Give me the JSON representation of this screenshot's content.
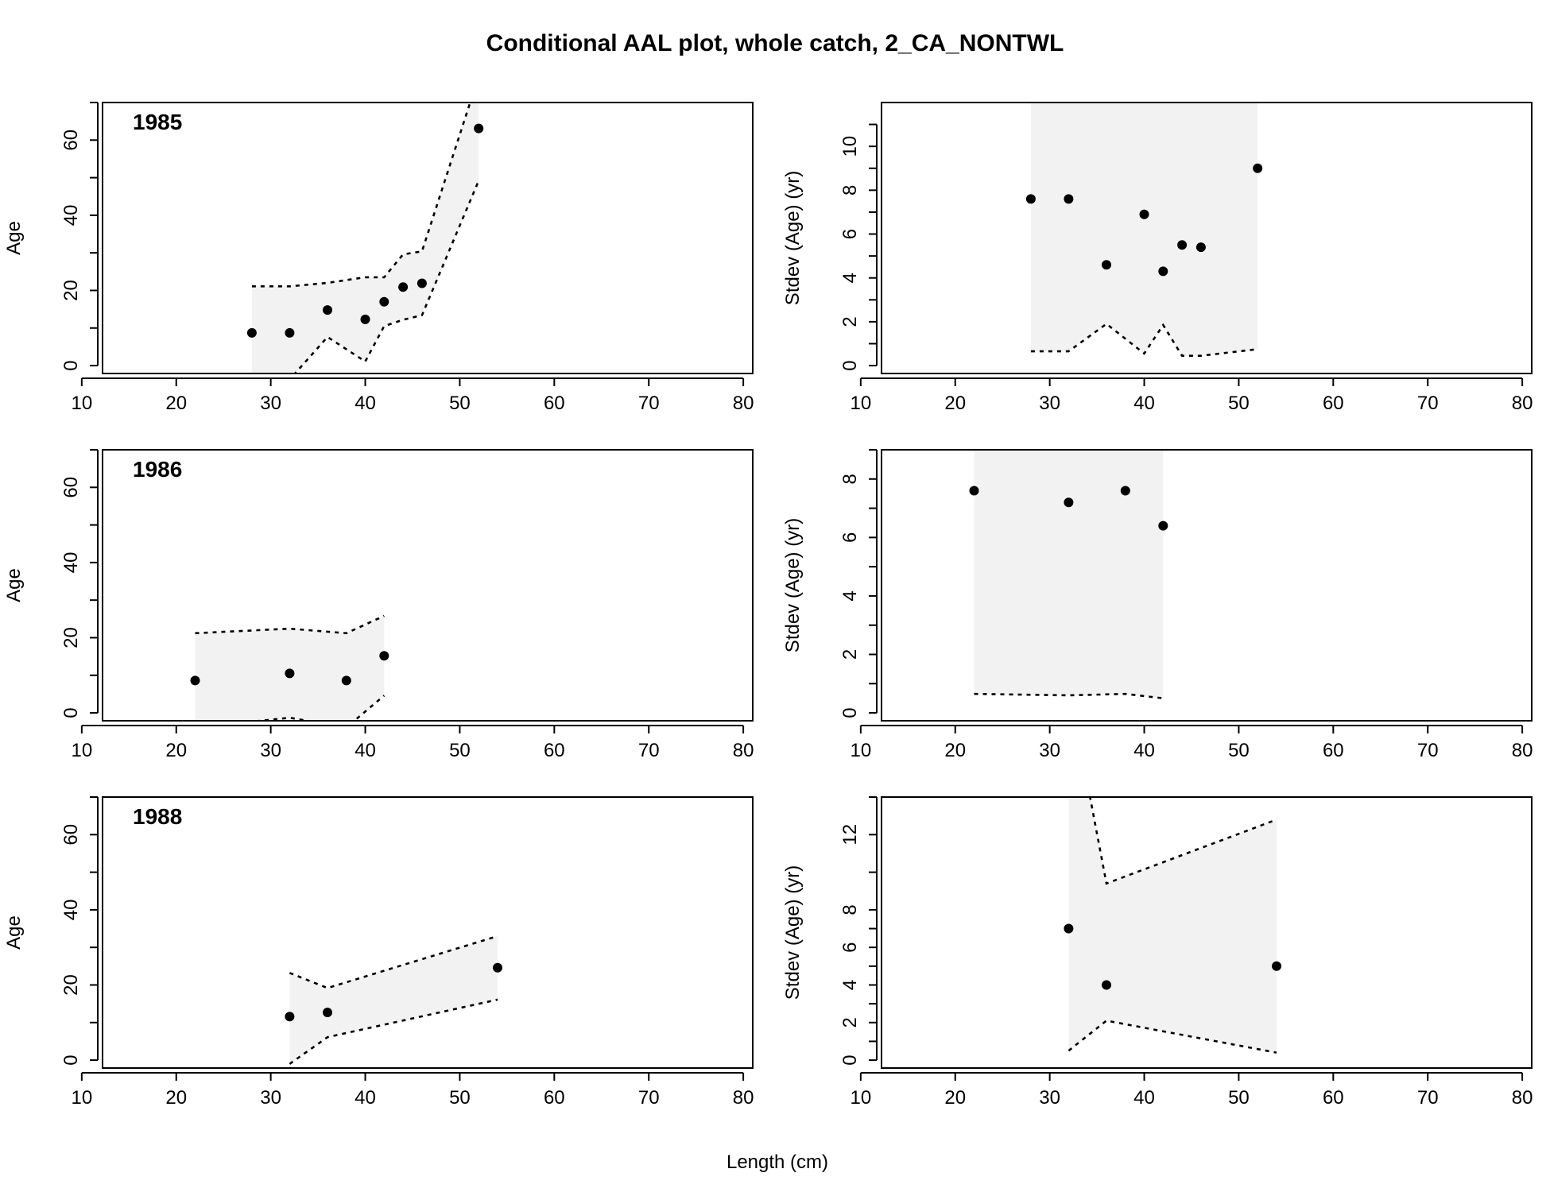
{
  "title": "Conditional AAL plot, whole catch, 2_CA_NONTWL",
  "xlabel": "Length (cm)",
  "chart_data": [
    {
      "type": "scatter",
      "panel": "mean-age",
      "year": "1985",
      "ylabel": "Age",
      "xlim": [
        10,
        80
      ],
      "ylim": [
        0,
        70
      ],
      "xticks": [
        10,
        20,
        30,
        40,
        50,
        60,
        70,
        80
      ],
      "yticks": [
        0,
        20,
        40,
        60
      ],
      "yminor": [
        10,
        30,
        50,
        70
      ],
      "x": [
        28,
        32,
        36,
        40,
        42,
        44,
        46,
        52
      ],
      "y": [
        8.7,
        8.7,
        14.8,
        12.3,
        17.0,
        20.9,
        21.9,
        63.1
      ],
      "upper": [
        21.1,
        21.1,
        22.0,
        23.5,
        23.5,
        29.6,
        30.4,
        77.0
      ],
      "lower": [
        -3.7,
        -3.7,
        7.6,
        1.1,
        10.5,
        12.2,
        13.4,
        49.2
      ]
    },
    {
      "type": "scatter",
      "panel": "stdev-age",
      "year": "1985",
      "ylabel": "Stdev (Age) (yr)",
      "xlim": [
        10,
        80
      ],
      "ylim": [
        0,
        12
      ],
      "xticks": [
        10,
        20,
        30,
        40,
        50,
        60,
        70,
        80
      ],
      "yticks": [
        0,
        2,
        4,
        6,
        8,
        10
      ],
      "yminor": [
        1,
        3,
        5,
        7,
        9,
        11
      ],
      "x": [
        28,
        32,
        36,
        40,
        42,
        44,
        46,
        52
      ],
      "y": [
        7.6,
        7.6,
        4.6,
        6.9,
        4.3,
        5.5,
        5.4,
        9.0
      ],
      "upper": [
        20,
        20,
        20,
        20,
        20,
        20,
        20,
        20
      ],
      "lower": [
        0.65,
        0.65,
        1.9,
        0.55,
        1.85,
        0.45,
        0.45,
        0.75
      ]
    },
    {
      "type": "scatter",
      "panel": "mean-age",
      "year": "1986",
      "ylabel": "Age",
      "xlim": [
        10,
        80
      ],
      "ylim": [
        0,
        70
      ],
      "xticks": [
        10,
        20,
        30,
        40,
        50,
        60,
        70,
        80
      ],
      "yticks": [
        0,
        20,
        40,
        60
      ],
      "yminor": [
        10,
        30,
        50,
        70
      ],
      "x": [
        22,
        32,
        38,
        42
      ],
      "y": [
        8.6,
        10.5,
        8.6,
        15.2
      ],
      "upper": [
        21.2,
        22.4,
        21.2,
        25.8
      ],
      "lower": [
        -3.9,
        -1.3,
        -3.9,
        4.6
      ]
    },
    {
      "type": "scatter",
      "panel": "stdev-age",
      "year": "1986",
      "ylabel": "Stdev (Age) (yr)",
      "xlim": [
        10,
        80
      ],
      "ylim": [
        0,
        9
      ],
      "xticks": [
        10,
        20,
        30,
        40,
        50,
        60,
        70,
        80
      ],
      "yticks": [
        0,
        2,
        4,
        6,
        8
      ],
      "yminor": [
        1,
        3,
        5,
        7,
        9
      ],
      "x": [
        22,
        32,
        38,
        42
      ],
      "y": [
        7.6,
        7.2,
        7.6,
        6.4
      ],
      "upper": [
        20,
        20,
        20,
        20
      ],
      "lower": [
        0.65,
        0.6,
        0.65,
        0.5
      ]
    },
    {
      "type": "scatter",
      "panel": "mean-age",
      "year": "1988",
      "ylabel": "Age",
      "xlim": [
        10,
        80
      ],
      "ylim": [
        0,
        70
      ],
      "xticks": [
        10,
        20,
        30,
        40,
        50,
        60,
        70,
        80
      ],
      "yticks": [
        0,
        20,
        40,
        60
      ],
      "yminor": [
        10,
        30,
        50,
        70
      ],
      "x": [
        32,
        36,
        54
      ],
      "y": [
        11.6,
        12.7,
        24.6
      ],
      "upper": [
        23.2,
        19.2,
        33.0
      ],
      "lower": [
        -1.0,
        6.1,
        16.1
      ]
    },
    {
      "type": "scatter",
      "panel": "stdev-age",
      "year": "1988",
      "ylabel": "Stdev (Age) (yr)",
      "xlim": [
        10,
        80
      ],
      "ylim": [
        0,
        14
      ],
      "xticks": [
        10,
        20,
        30,
        40,
        50,
        60,
        70,
        80
      ],
      "yticks": [
        0,
        2,
        4,
        6,
        8,
        12
      ],
      "yminor": [
        1,
        3,
        5,
        7,
        10,
        14
      ],
      "x": [
        32,
        36,
        54
      ],
      "y": [
        7.0,
        4.0,
        5.0
      ],
      "upper": [
        20.0,
        9.4,
        12.8
      ],
      "lower": [
        0.5,
        2.1,
        0.4
      ]
    }
  ]
}
